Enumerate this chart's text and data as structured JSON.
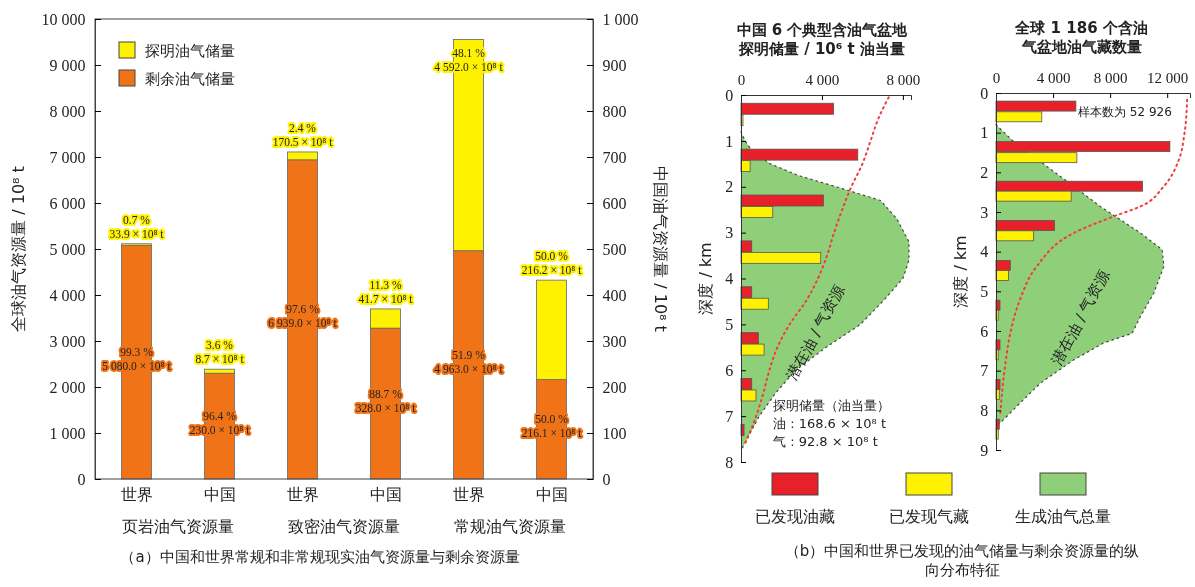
{
  "chart_data": [
    {
      "type": "bar",
      "stacked": true,
      "title": "（a）中国和世界常规和非常规现实油气资源量与剩余资源量",
      "categories": [
        "世界",
        "中国",
        "世界",
        "中国",
        "世界",
        "中国"
      ],
      "annotations": [
        "页岩油气资源量",
        "致密油气资源量",
        "常规油气资源量"
      ],
      "ylabel": "全球油气资源量 / 10⁸ t",
      "y2label": "中国油气资源量 / 10⁸ t",
      "ylim": [
        0,
        10000
      ],
      "yticks": [
        0,
        {
          "value": 1000,
          "label": "1 000"
        },
        {
          "value": 2000,
          "label": "2 000"
        },
        {
          "value": 3000,
          "label": "3 000"
        },
        {
          "value": 4000,
          "label": "4 000"
        },
        {
          "value": 5000,
          "label": "5 000"
        },
        {
          "value": 6000,
          "label": "6 000"
        },
        {
          "value": 7000,
          "label": "7 000"
        },
        {
          "value": 8000,
          "label": "8 000"
        },
        {
          "value": 9000,
          "label": "9 000"
        },
        {
          "value": 10000,
          "label": "10 000"
        }
      ],
      "y2lim": [
        0,
        1000
      ],
      "y2ticks": [
        0,
        100,
        200,
        300,
        400,
        500,
        600,
        700,
        800,
        900,
        {
          "value": 1000,
          "label": "1 000"
        }
      ],
      "legend": "top left",
      "series": [
        {
          "name": "剩余油气储量",
          "color": "#f07317",
          "values": [
            5080.0,
            null,
            6939.0,
            null,
            4963.0,
            null
          ],
          "value_labels": [
            "99.3 %\n5 080.0 × 10⁸ t",
            null,
            "97.6 %\n6 939.0 × 10⁸ t",
            null,
            "51.9 %\n4 963.0 × 10⁸ t",
            null
          ]
        },
        {
          "name": "探明油气储量",
          "color": "#fff200",
          "values": [
            33.9,
            null,
            170.5,
            null,
            4592.0,
            null
          ],
          "value_labels": [
            "0.7 %\n33.9 × 10⁸ t",
            null,
            "2.4 %\n170.5 × 10⁸ t",
            null,
            "48.1 %\n4 592.0 × 10⁸ t",
            null
          ]
        },
        {
          "color": "#f07317",
          "axis": "y2",
          "values": [
            null,
            230.0,
            null,
            328.0,
            null,
            216.1
          ],
          "value_labels": [
            null,
            "96.4 %\n230.0 × 10⁸ t",
            null,
            "88.7 %\n328.0 × 10⁸ t",
            null,
            "50.0 %\n216.1 × 10⁸ t"
          ]
        },
        {
          "color": "#fff200",
          "axis": "y2",
          "values": [
            null,
            8.7,
            null,
            41.7,
            null,
            216.2
          ],
          "value_labels": [
            null,
            "3.6 %\n8.7 × 10⁸ t",
            null,
            "11.3 %\n41.7 × 10⁸ t",
            null,
            "50.0 %\n216.2 × 10⁸ t"
          ]
        }
      ]
    },
    {
      "type": "bar",
      "orientation": "horizontal",
      "title": "（b）中国和世界已发现的油气储量与剩余资源量的纵向分布特征",
      "xlabel": "中国 6 个典型含油气盆地探明储量 / 10⁶ t 油当量",
      "ylabel": "深度 / km",
      "xlim": [
        0,
        8400
      ],
      "xticks": [
        0,
        {
          "value": 4000,
          "label": "4 000"
        },
        {
          "value": 8000,
          "label": "8 000"
        }
      ],
      "ylim": [
        8,
        0
      ],
      "yticks": [
        0,
        1,
        2,
        3,
        4,
        5,
        6,
        7,
        8
      ],
      "legend": "bottom",
      "annotations": [
        "潜在油 / 气资源",
        "探明储量（油当量）",
        "油 : 168.6 × 10⁸ t",
        "气 : 92.8 × 10⁸ t"
      ],
      "series": [
        {
          "name": "已发现油藏",
          "color": "#e8202a",
          "x": [
            0.3,
            1.3,
            2.3,
            3.3,
            4.3,
            5.3,
            6.3,
            7.3
          ],
          "values": [
            4570,
            5770,
            4070,
            530,
            530,
            860,
            530,
            150
          ]
        },
        {
          "name": "已发现气藏",
          "color": "#fff200",
          "x": [
            0.55,
            1.55,
            2.55,
            3.55,
            4.55,
            5.55,
            6.55
          ],
          "values": [
            100,
            450,
            1570,
            3940,
            1350,
            1140,
            740
          ]
        },
        {
          "name": "生成油气总量",
          "type": "area",
          "color": "#8fcf7a",
          "line_style": "dotted",
          "x": [
            0.8,
            1.0,
            1.25,
            1.5,
            1.75,
            2.0,
            2.3,
            2.7,
            3.2,
            3.6,
            4.0,
            4.5,
            5.0,
            5.5,
            6.0,
            6.5,
            7.0,
            7.5,
            7.75
          ],
          "values": [
            0,
            200,
            600,
            1450,
            2800,
            4700,
            6900,
            7700,
            8300,
            8300,
            8000,
            7000,
            5900,
            4200,
            2700,
            1700,
            900,
            300,
            0
          ]
        },
        {
          "type": "line",
          "color": "#f03c3c",
          "line_style": "dotted",
          "x": [
            0.05,
            0.5,
            1.0,
            1.5,
            2.0,
            2.5,
            3.0,
            3.5,
            4.0,
            4.5,
            5.0,
            5.5,
            6.0,
            6.5,
            7.0,
            7.6
          ],
          "values": [
            7300,
            6800,
            6400,
            6000,
            5450,
            5000,
            4600,
            4250,
            3800,
            3200,
            2400,
            1800,
            1400,
            1100,
            750,
            200
          ]
        }
      ]
    },
    {
      "type": "bar",
      "orientation": "horizontal",
      "xlabel": "全球 1 186 个含油气盆地油气藏数量",
      "ylabel": "深度 / km",
      "xlim": [
        0,
        13600
      ],
      "xticks": [
        0,
        {
          "value": 4000,
          "label": "4 000"
        },
        {
          "value": 8000,
          "label": "8 000"
        },
        {
          "value": 12000,
          "label": "12 000"
        }
      ],
      "ylim": [
        9,
        0
      ],
      "yticks": [
        0,
        1,
        2,
        3,
        4,
        5,
        6,
        7,
        8,
        9
      ],
      "annotations": [
        "潜在油 / 气资源",
        "样本数为 52 926"
      ],
      "series": [
        {
          "type": "area",
          "color": "#8fcf7a",
          "line_style": "dotted",
          "x": [
            0.8,
            1.18,
            1.85,
            2.35,
            2.86,
            3.53,
            3.95,
            4.37,
            5.05,
            5.63,
            6.06,
            6.3,
            6.73,
            7.32,
            7.9,
            8.24,
            8.4
          ],
          "values": [
            0,
            1100,
            3560,
            5440,
            7310,
            10130,
            11650,
            11770,
            11060,
            10130,
            9540,
            7550,
            5440,
            3090,
            1450,
            520,
            50
          ]
        },
        {
          "type": "line",
          "color": "#f03c3c",
          "line_style": "dotted",
          "x": [
            0.17,
            1.0,
            1.68,
            2.35,
            2.86,
            3.11,
            3.53,
            4.37,
            5.2,
            6.06,
            6.9,
            8.16
          ],
          "values": [
            13400,
            13220,
            12820,
            11770,
            10130,
            8250,
            5440,
            2860,
            1690,
            1000,
            630,
            280
          ]
        },
        {
          "color": "#e8202a",
          "x": [
            0.33,
            1.35,
            2.35,
            3.34,
            4.35,
            5.35,
            6.35,
            7.35,
            8.35
          ],
          "values": [
            5600,
            12190,
            10270,
            4100,
            1000,
            280,
            280,
            280,
            230
          ]
        },
        {
          "color": "#fff200",
          "x": [
            0.6,
            1.63,
            2.6,
            3.6,
            4.6,
            5.6,
            6.6,
            7.6,
            8.6
          ],
          "values": [
            3210,
            5670,
            5270,
            2630,
            870,
            160,
            160,
            230,
            160
          ]
        }
      ]
    }
  ]
}
